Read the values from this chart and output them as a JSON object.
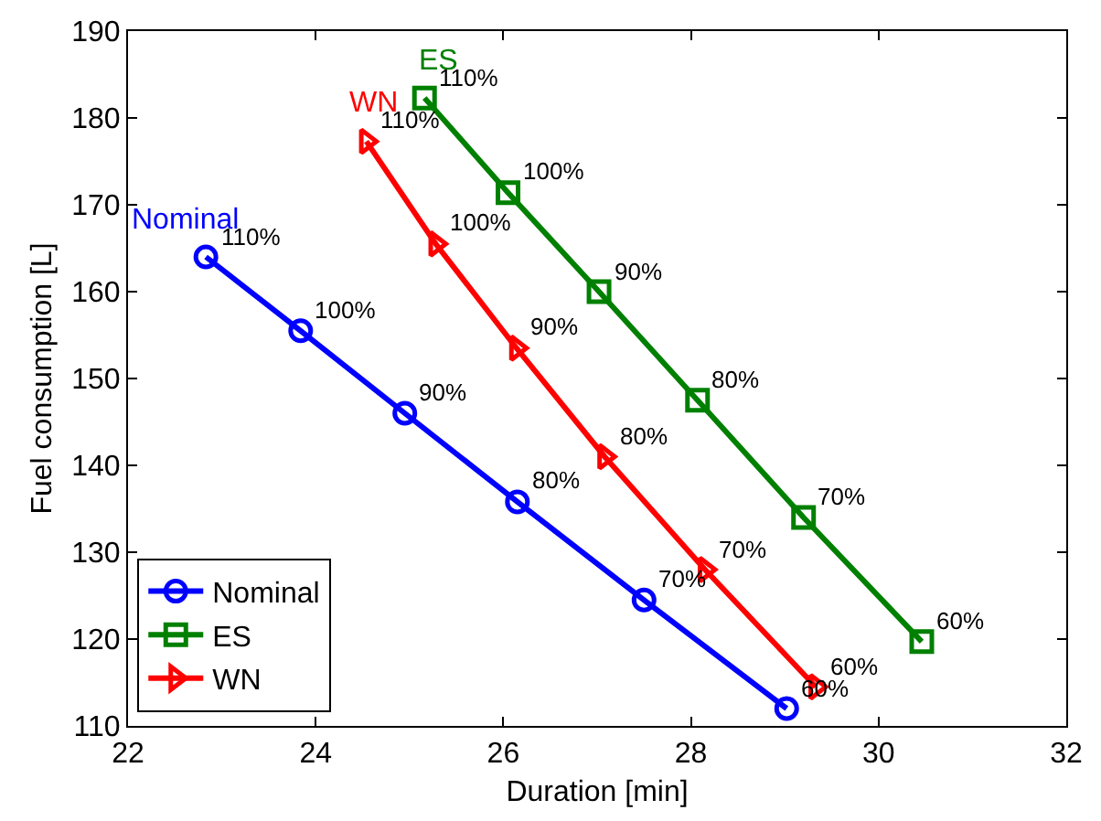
{
  "chart_data": {
    "type": "line",
    "xlabel": "Duration [min]",
    "ylabel": "Fuel consumption [L]",
    "xlim": [
      22,
      32
    ],
    "xticks": [
      22,
      24,
      26,
      28,
      30,
      32
    ],
    "ylim": [
      110,
      190
    ],
    "yticks": [
      110,
      120,
      130,
      140,
      150,
      160,
      170,
      180,
      190
    ],
    "grid": false,
    "legend": "bottom left",
    "line_style": "solid",
    "series": [
      {
        "name": "Nominal",
        "color": "#0000ff",
        "marker": "circle",
        "x": [
          22.83,
          23.84,
          24.95,
          26.15,
          27.5,
          29.02
        ],
        "values": [
          164,
          155.5,
          146,
          135.8,
          124.5,
          112
        ]
      },
      {
        "name": "ES",
        "color": "#008000",
        "marker": "square",
        "x": [
          25.16,
          26.05,
          27.02,
          28.07,
          29.2,
          30.46
        ],
        "values": [
          182.3,
          171.4,
          160,
          147.5,
          134,
          119.7
        ]
      },
      {
        "name": "WN",
        "color": "#ff0000",
        "marker": "triangle",
        "x": [
          24.54,
          25.28,
          26.14,
          27.08,
          28.15,
          29.33
        ],
        "values": [
          177.3,
          165.5,
          153.5,
          141,
          128,
          114.5
        ]
      }
    ],
    "annotations": [
      {
        "text": "110%",
        "x": 22.83,
        "y": 164
      },
      {
        "text": "100%",
        "x": 23.84,
        "y": 155.5
      },
      {
        "text": "90%",
        "x": 24.95,
        "y": 146
      },
      {
        "text": "80%",
        "x": 26.15,
        "y": 135.8
      },
      {
        "text": "70%",
        "x": 27.5,
        "y": 124.5
      },
      {
        "text": "60%",
        "x": 29.02,
        "y": 112
      },
      {
        "text": "110%",
        "x": 25.16,
        "y": 182.3
      },
      {
        "text": "100%",
        "x": 26.05,
        "y": 171.4
      },
      {
        "text": "90%",
        "x": 27.02,
        "y": 160
      },
      {
        "text": "80%",
        "x": 28.07,
        "y": 147.5
      },
      {
        "text": "70%",
        "x": 29.2,
        "y": 134
      },
      {
        "text": "60%",
        "x": 30.46,
        "y": 119.7
      },
      {
        "text": "110%",
        "x": 24.54,
        "y": 177.3
      },
      {
        "text": "100%",
        "x": 25.28,
        "y": 165.5
      },
      {
        "text": "90%",
        "x": 26.14,
        "y": 153.5
      },
      {
        "text": "80%",
        "x": 27.08,
        "y": 141
      },
      {
        "text": "70%",
        "x": 28.15,
        "y": 128
      },
      {
        "text": "60%",
        "x": 29.33,
        "y": 114.5
      }
    ]
  }
}
